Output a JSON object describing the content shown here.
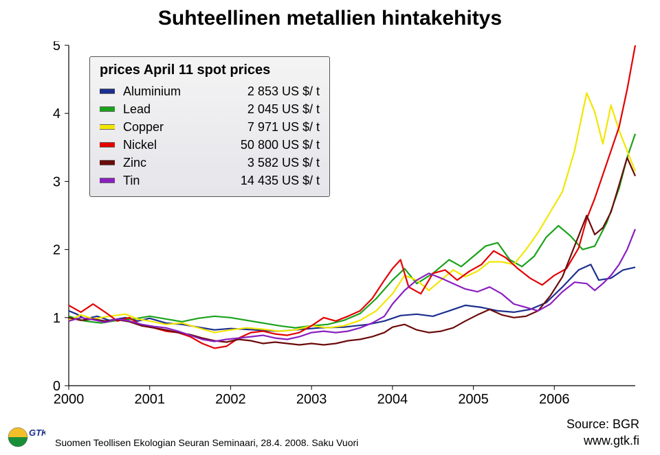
{
  "title": "Suhteellinen metallien hintakehitys",
  "footer_left": "Suomen Teollisen Ekologian Seuran Seminaari, 28.4. 2008. Saku Vuori",
  "footer_right": "www.gtk.fi",
  "source": "Source: BGR",
  "logo_text": "GTK",
  "chart": {
    "type": "line",
    "xlim": [
      2000,
      2007
    ],
    "ylim": [
      0,
      5
    ],
    "yticks": [
      0,
      1,
      2,
      3,
      4,
      5
    ],
    "xticks": [
      2000,
      2001,
      2002,
      2003,
      2004,
      2005,
      2006
    ],
    "background_color": "#ffffff",
    "axis_color": "#000000",
    "tick_fontsize": 20,
    "title_fontsize": 30,
    "line_width": 2.2,
    "legend": {
      "title": "prices April 11 spot prices",
      "items": [
        {
          "name": "Aluminium",
          "price": "2 853 US $/ t",
          "color": "#1c2f8f"
        },
        {
          "name": "Lead",
          "price": "2 045 US $/ t",
          "color": "#1aa21a"
        },
        {
          "name": "Copper",
          "price": "7 971 US $/ t",
          "color": "#f2e600"
        },
        {
          "name": "Nickel",
          "price": "50 800 US $/ t",
          "color": "#e30000"
        },
        {
          "name": "Zinc",
          "price": "3 582 US $/ t",
          "color": "#6b0b0b"
        },
        {
          "name": "Tin",
          "price": "14 435 US $/ t",
          "color": "#8a1fc0"
        }
      ]
    },
    "series": [
      {
        "name": "Aluminium",
        "color": "#1c2f8f",
        "points": [
          [
            2000.0,
            1.1
          ],
          [
            2000.1,
            1.05
          ],
          [
            2000.2,
            0.98
          ],
          [
            2000.35,
            1.02
          ],
          [
            2000.5,
            0.96
          ],
          [
            2000.7,
            1.0
          ],
          [
            2000.85,
            0.95
          ],
          [
            2001.0,
            0.99
          ],
          [
            2001.2,
            0.92
          ],
          [
            2001.4,
            0.9
          ],
          [
            2001.6,
            0.86
          ],
          [
            2001.8,
            0.82
          ],
          [
            2002.0,
            0.84
          ],
          [
            2002.3,
            0.82
          ],
          [
            2002.6,
            0.8
          ],
          [
            2002.9,
            0.83
          ],
          [
            2003.1,
            0.85
          ],
          [
            2003.4,
            0.86
          ],
          [
            2003.7,
            0.9
          ],
          [
            2003.9,
            0.95
          ],
          [
            2004.1,
            1.03
          ],
          [
            2004.3,
            1.05
          ],
          [
            2004.5,
            1.02
          ],
          [
            2004.7,
            1.1
          ],
          [
            2004.9,
            1.18
          ],
          [
            2005.1,
            1.15
          ],
          [
            2005.3,
            1.1
          ],
          [
            2005.5,
            1.08
          ],
          [
            2005.7,
            1.12
          ],
          [
            2005.9,
            1.22
          ],
          [
            2006.1,
            1.45
          ],
          [
            2006.3,
            1.7
          ],
          [
            2006.45,
            1.78
          ],
          [
            2006.55,
            1.55
          ],
          [
            2006.7,
            1.58
          ],
          [
            2006.85,
            1.7
          ],
          [
            2007.0,
            1.74
          ]
        ]
      },
      {
        "name": "Lead",
        "color": "#1aa21a",
        "points": [
          [
            2000.0,
            1.02
          ],
          [
            2000.2,
            0.95
          ],
          [
            2000.4,
            0.92
          ],
          [
            2000.6,
            0.96
          ],
          [
            2000.8,
            0.98
          ],
          [
            2001.0,
            1.02
          ],
          [
            2001.2,
            0.98
          ],
          [
            2001.4,
            0.94
          ],
          [
            2001.6,
            0.99
          ],
          [
            2001.8,
            1.02
          ],
          [
            2002.0,
            1.0
          ],
          [
            2002.2,
            0.96
          ],
          [
            2002.4,
            0.92
          ],
          [
            2002.6,
            0.88
          ],
          [
            2002.8,
            0.85
          ],
          [
            2003.0,
            0.88
          ],
          [
            2003.2,
            0.9
          ],
          [
            2003.4,
            0.96
          ],
          [
            2003.6,
            1.06
          ],
          [
            2003.8,
            1.28
          ],
          [
            2004.0,
            1.55
          ],
          [
            2004.15,
            1.72
          ],
          [
            2004.3,
            1.5
          ],
          [
            2004.5,
            1.65
          ],
          [
            2004.7,
            1.85
          ],
          [
            2004.85,
            1.75
          ],
          [
            2005.0,
            1.9
          ],
          [
            2005.15,
            2.05
          ],
          [
            2005.3,
            2.1
          ],
          [
            2005.45,
            1.85
          ],
          [
            2005.6,
            1.75
          ],
          [
            2005.75,
            1.9
          ],
          [
            2005.9,
            2.18
          ],
          [
            2006.05,
            2.35
          ],
          [
            2006.2,
            2.2
          ],
          [
            2006.35,
            2.0
          ],
          [
            2006.5,
            2.05
          ],
          [
            2006.65,
            2.4
          ],
          [
            2006.8,
            2.9
          ],
          [
            2006.9,
            3.35
          ],
          [
            2007.0,
            3.7
          ]
        ]
      },
      {
        "name": "Copper",
        "color": "#f2e600",
        "points": [
          [
            2000.0,
            0.96
          ],
          [
            2000.15,
            1.04
          ],
          [
            2000.3,
            0.98
          ],
          [
            2000.5,
            1.02
          ],
          [
            2000.7,
            1.05
          ],
          [
            2000.85,
            0.98
          ],
          [
            2001.0,
            0.95
          ],
          [
            2001.2,
            0.9
          ],
          [
            2001.4,
            0.92
          ],
          [
            2001.6,
            0.85
          ],
          [
            2001.8,
            0.78
          ],
          [
            2002.0,
            0.82
          ],
          [
            2002.2,
            0.85
          ],
          [
            2002.4,
            0.83
          ],
          [
            2002.6,
            0.8
          ],
          [
            2002.8,
            0.82
          ],
          [
            2003.0,
            0.88
          ],
          [
            2003.2,
            0.85
          ],
          [
            2003.4,
            0.88
          ],
          [
            2003.6,
            0.96
          ],
          [
            2003.8,
            1.1
          ],
          [
            2004.0,
            1.35
          ],
          [
            2004.15,
            1.62
          ],
          [
            2004.3,
            1.55
          ],
          [
            2004.45,
            1.4
          ],
          [
            2004.6,
            1.55
          ],
          [
            2004.75,
            1.7
          ],
          [
            2004.9,
            1.6
          ],
          [
            2005.05,
            1.68
          ],
          [
            2005.2,
            1.82
          ],
          [
            2005.35,
            1.82
          ],
          [
            2005.5,
            1.78
          ],
          [
            2005.65,
            2.0
          ],
          [
            2005.8,
            2.25
          ],
          [
            2005.95,
            2.55
          ],
          [
            2006.1,
            2.85
          ],
          [
            2006.25,
            3.45
          ],
          [
            2006.4,
            4.3
          ],
          [
            2006.5,
            4.02
          ],
          [
            2006.6,
            3.55
          ],
          [
            2006.7,
            4.12
          ],
          [
            2006.8,
            3.75
          ],
          [
            2006.9,
            3.45
          ],
          [
            2007.0,
            3.15
          ]
        ]
      },
      {
        "name": "Nickel",
        "color": "#e30000",
        "points": [
          [
            2000.0,
            1.18
          ],
          [
            2000.15,
            1.08
          ],
          [
            2000.3,
            1.2
          ],
          [
            2000.45,
            1.08
          ],
          [
            2000.6,
            0.95
          ],
          [
            2000.75,
            1.0
          ],
          [
            2000.9,
            0.88
          ],
          [
            2001.05,
            0.85
          ],
          [
            2001.2,
            0.8
          ],
          [
            2001.35,
            0.78
          ],
          [
            2001.5,
            0.72
          ],
          [
            2001.65,
            0.62
          ],
          [
            2001.8,
            0.55
          ],
          [
            2001.95,
            0.58
          ],
          [
            2002.1,
            0.7
          ],
          [
            2002.25,
            0.78
          ],
          [
            2002.4,
            0.8
          ],
          [
            2002.55,
            0.76
          ],
          [
            2002.7,
            0.74
          ],
          [
            2002.85,
            0.78
          ],
          [
            2003.0,
            0.88
          ],
          [
            2003.15,
            1.0
          ],
          [
            2003.3,
            0.95
          ],
          [
            2003.45,
            1.02
          ],
          [
            2003.6,
            1.1
          ],
          [
            2003.75,
            1.28
          ],
          [
            2003.9,
            1.55
          ],
          [
            2004.0,
            1.72
          ],
          [
            2004.1,
            1.85
          ],
          [
            2004.2,
            1.45
          ],
          [
            2004.35,
            1.35
          ],
          [
            2004.5,
            1.65
          ],
          [
            2004.65,
            1.7
          ],
          [
            2004.8,
            1.55
          ],
          [
            2004.95,
            1.68
          ],
          [
            2005.1,
            1.78
          ],
          [
            2005.25,
            1.98
          ],
          [
            2005.4,
            1.88
          ],
          [
            2005.55,
            1.72
          ],
          [
            2005.7,
            1.58
          ],
          [
            2005.85,
            1.48
          ],
          [
            2006.0,
            1.62
          ],
          [
            2006.15,
            1.72
          ],
          [
            2006.3,
            2.02
          ],
          [
            2006.4,
            2.45
          ],
          [
            2006.5,
            2.75
          ],
          [
            2006.6,
            3.1
          ],
          [
            2006.7,
            3.45
          ],
          [
            2006.8,
            3.8
          ],
          [
            2006.9,
            4.35
          ],
          [
            2007.0,
            5.0
          ]
        ]
      },
      {
        "name": "Zinc",
        "color": "#6b0b0b",
        "points": [
          [
            2000.0,
            1.0
          ],
          [
            2000.15,
            0.96
          ],
          [
            2000.3,
            0.98
          ],
          [
            2000.45,
            0.95
          ],
          [
            2000.6,
            0.97
          ],
          [
            2000.75,
            0.94
          ],
          [
            2000.9,
            0.88
          ],
          [
            2001.05,
            0.85
          ],
          [
            2001.2,
            0.82
          ],
          [
            2001.35,
            0.78
          ],
          [
            2001.5,
            0.75
          ],
          [
            2001.65,
            0.7
          ],
          [
            2001.8,
            0.66
          ],
          [
            2001.95,
            0.64
          ],
          [
            2002.1,
            0.68
          ],
          [
            2002.25,
            0.66
          ],
          [
            2002.4,
            0.62
          ],
          [
            2002.55,
            0.64
          ],
          [
            2002.7,
            0.62
          ],
          [
            2002.85,
            0.6
          ],
          [
            2003.0,
            0.62
          ],
          [
            2003.15,
            0.6
          ],
          [
            2003.3,
            0.62
          ],
          [
            2003.45,
            0.66
          ],
          [
            2003.6,
            0.68
          ],
          [
            2003.75,
            0.72
          ],
          [
            2003.9,
            0.78
          ],
          [
            2004.0,
            0.86
          ],
          [
            2004.15,
            0.9
          ],
          [
            2004.3,
            0.82
          ],
          [
            2004.45,
            0.78
          ],
          [
            2004.6,
            0.8
          ],
          [
            2004.75,
            0.85
          ],
          [
            2004.9,
            0.95
          ],
          [
            2005.05,
            1.04
          ],
          [
            2005.2,
            1.12
          ],
          [
            2005.35,
            1.04
          ],
          [
            2005.5,
            1.0
          ],
          [
            2005.65,
            1.02
          ],
          [
            2005.8,
            1.1
          ],
          [
            2005.95,
            1.32
          ],
          [
            2006.1,
            1.6
          ],
          [
            2006.25,
            2.05
          ],
          [
            2006.4,
            2.5
          ],
          [
            2006.5,
            2.22
          ],
          [
            2006.6,
            2.32
          ],
          [
            2006.7,
            2.55
          ],
          [
            2006.8,
            2.95
          ],
          [
            2006.9,
            3.35
          ],
          [
            2007.0,
            3.08
          ]
        ]
      },
      {
        "name": "Tin",
        "color": "#8a1fc0",
        "points": [
          [
            2000.0,
            0.95
          ],
          [
            2000.15,
            1.0
          ],
          [
            2000.3,
            0.97
          ],
          [
            2000.45,
            0.93
          ],
          [
            2000.6,
            0.98
          ],
          [
            2000.75,
            0.95
          ],
          [
            2000.9,
            0.9
          ],
          [
            2001.05,
            0.87
          ],
          [
            2001.2,
            0.85
          ],
          [
            2001.35,
            0.8
          ],
          [
            2001.5,
            0.74
          ],
          [
            2001.65,
            0.68
          ],
          [
            2001.8,
            0.65
          ],
          [
            2001.95,
            0.68
          ],
          [
            2002.1,
            0.7
          ],
          [
            2002.25,
            0.72
          ],
          [
            2002.4,
            0.74
          ],
          [
            2002.55,
            0.7
          ],
          [
            2002.7,
            0.68
          ],
          [
            2002.85,
            0.72
          ],
          [
            2003.0,
            0.78
          ],
          [
            2003.15,
            0.8
          ],
          [
            2003.3,
            0.78
          ],
          [
            2003.45,
            0.8
          ],
          [
            2003.6,
            0.85
          ],
          [
            2003.75,
            0.92
          ],
          [
            2003.9,
            1.02
          ],
          [
            2004.0,
            1.2
          ],
          [
            2004.15,
            1.4
          ],
          [
            2004.3,
            1.55
          ],
          [
            2004.45,
            1.65
          ],
          [
            2004.6,
            1.58
          ],
          [
            2004.75,
            1.5
          ],
          [
            2004.9,
            1.42
          ],
          [
            2005.05,
            1.38
          ],
          [
            2005.2,
            1.45
          ],
          [
            2005.35,
            1.35
          ],
          [
            2005.5,
            1.2
          ],
          [
            2005.65,
            1.15
          ],
          [
            2005.8,
            1.1
          ],
          [
            2005.95,
            1.2
          ],
          [
            2006.1,
            1.38
          ],
          [
            2006.25,
            1.52
          ],
          [
            2006.4,
            1.5
          ],
          [
            2006.5,
            1.4
          ],
          [
            2006.6,
            1.5
          ],
          [
            2006.7,
            1.62
          ],
          [
            2006.8,
            1.78
          ],
          [
            2006.9,
            2.0
          ],
          [
            2007.0,
            2.3
          ]
        ]
      }
    ]
  }
}
